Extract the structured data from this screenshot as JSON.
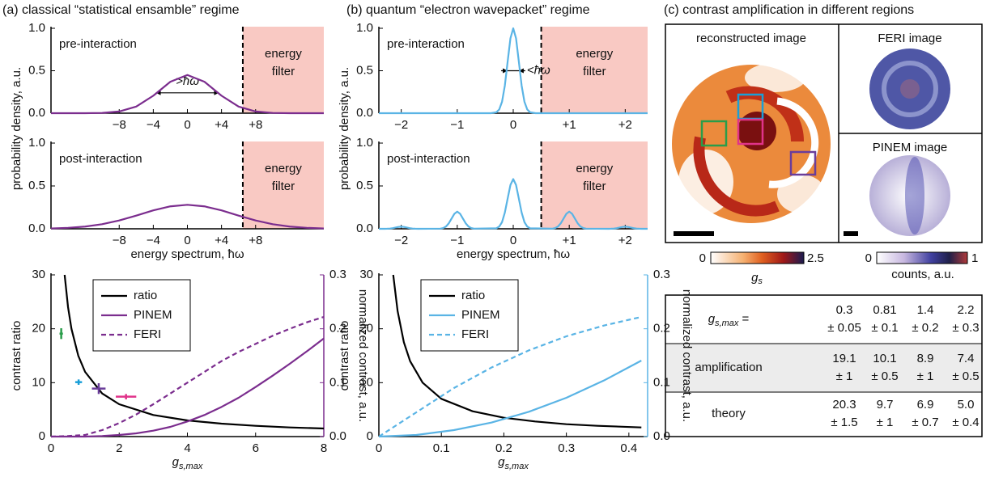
{
  "panels": [
    {
      "label": "(a) classical “statistical ensamble” regime"
    },
    {
      "label": "(b) quantum “electron wavepacket” regime"
    },
    {
      "label": "(c) contrast amplification in different regions"
    }
  ],
  "chart_data": [
    {
      "type": "line",
      "annotation": "pre-interaction",
      "ylabel": "probability density, a.u.",
      "filter_from": 6.5,
      "filter_label": [
        "energy",
        "filter"
      ],
      "width_marker": {
        "label": ">ħω",
        "from": -3.7,
        "to": 3.7,
        "y": 0.24
      },
      "xlim": [
        -16,
        16
      ],
      "xticks": [
        {
          "value": -8,
          "label": "−8"
        },
        {
          "value": -4,
          "label": "−4"
        },
        0,
        {
          "value": 4,
          "label": "+4"
        },
        {
          "value": 8,
          "label": "+8"
        }
      ],
      "ylim": [
        0,
        1
      ],
      "yticks": [
        {
          "value": 0,
          "label": "0.0"
        },
        0.5,
        {
          "value": 1,
          "label": "1.0"
        }
      ],
      "series": [
        {
          "color": "#7b2d8e",
          "x": [
            -16,
            -14,
            -12,
            -10,
            -8,
            -6,
            -4,
            -2,
            0,
            2,
            4,
            6,
            8,
            10,
            12,
            14,
            16
          ],
          "values": [
            0,
            0,
            0,
            0.003,
            0.02,
            0.078,
            0.206,
            0.37,
            0.45,
            0.37,
            0.206,
            0.078,
            0.02,
            0.003,
            0,
            0,
            0
          ]
        }
      ]
    },
    {
      "type": "line",
      "annotation": "post-interaction",
      "xlabel": "energy spectrum,  ħω",
      "filter_from": 6.5,
      "filter_label": [
        "energy",
        "filter"
      ],
      "xlim": [
        -16,
        16
      ],
      "xticks": [
        {
          "value": -8,
          "label": "−8"
        },
        {
          "value": -4,
          "label": "−4"
        },
        0,
        {
          "value": 4,
          "label": "+4"
        },
        {
          "value": 8,
          "label": "+8"
        }
      ],
      "ylim": [
        0,
        1
      ],
      "yticks": [
        {
          "value": 0,
          "label": "0.0"
        },
        0.5,
        {
          "value": 1,
          "label": "1.0"
        }
      ],
      "series": [
        {
          "color": "#7b2d8e",
          "x": [
            -16,
            -14,
            -12,
            -10,
            -8,
            -6,
            -4,
            -2,
            0,
            2,
            4,
            6,
            8,
            10,
            12,
            14,
            16
          ],
          "values": [
            0.004,
            0.011,
            0.026,
            0.054,
            0.097,
            0.154,
            0.215,
            0.262,
            0.28,
            0.262,
            0.215,
            0.154,
            0.097,
            0.054,
            0.026,
            0.011,
            0.004
          ]
        }
      ]
    },
    {
      "type": "line",
      "annotation": "pre-interaction",
      "ylabel": "probability density, a.u.",
      "filter_from": 0.5,
      "filter_label": [
        "energy",
        "filter"
      ],
      "width_marker": {
        "label": "<ħω",
        "from": -0.1,
        "to": 0.1,
        "y": 0.5
      },
      "xlim": [
        -2.4,
        2.4
      ],
      "xticks": [
        {
          "value": -2,
          "label": "−2"
        },
        {
          "value": -1,
          "label": "−1"
        },
        0,
        {
          "value": 1,
          "label": "+1"
        },
        {
          "value": 2,
          "label": "+2"
        }
      ],
      "ylim": [
        0,
        1
      ],
      "yticks": [
        {
          "value": 0,
          "label": "0.0"
        },
        0.5,
        {
          "value": 1,
          "label": "1.0"
        }
      ],
      "series": [
        {
          "color": "#5ab4e5",
          "x": [
            -2.4,
            -0.4,
            -0.3,
            -0.25,
            -0.2,
            -0.15,
            -0.1,
            -0.05,
            0,
            0.05,
            0.1,
            0.15,
            0.2,
            0.25,
            0.3,
            0.4,
            2.4
          ],
          "values": [
            0,
            0,
            0.011,
            0.044,
            0.135,
            0.325,
            0.607,
            0.882,
            1,
            0.882,
            0.607,
            0.325,
            0.135,
            0.044,
            0.011,
            0,
            0
          ]
        }
      ]
    },
    {
      "type": "line",
      "annotation": "post-interaction",
      "xlabel": "energy spectrum,  ħω",
      "filter_from": 0.5,
      "filter_label": [
        "energy",
        "filter"
      ],
      "xlim": [
        -2.4,
        2.4
      ],
      "xticks": [
        {
          "value": -2,
          "label": "−2"
        },
        {
          "value": -1,
          "label": "−1"
        },
        0,
        {
          "value": 1,
          "label": "+1"
        },
        {
          "value": 2,
          "label": "+2"
        }
      ],
      "ylim": [
        0,
        1
      ],
      "yticks": [
        {
          "value": 0,
          "label": "0.0"
        },
        0.5,
        {
          "value": 1,
          "label": "1.0"
        }
      ],
      "series": [
        {
          "color": "#5ab4e5",
          "x": [
            -2.4,
            -2.3,
            -2.25,
            -2.2,
            -2.15,
            -2.1,
            -2.05,
            -2,
            -1.95,
            -1.9,
            -1.85,
            -1.8,
            -1.75,
            -1.7,
            -1.3,
            -1.25,
            -1.2,
            -1.15,
            -1.1,
            -1.05,
            -1,
            -0.95,
            -0.9,
            -0.85,
            -0.8,
            -0.75,
            -0.7,
            -0.3,
            -0.25,
            -0.2,
            -0.15,
            -0.1,
            -0.05,
            0,
            0.05,
            0.1,
            0.15,
            0.2,
            0.25,
            0.3,
            0.7,
            0.75,
            0.8,
            0.85,
            0.9,
            0.95,
            1,
            1.05,
            1.1,
            1.15,
            1.2,
            1.25,
            1.3,
            1.7,
            1.75,
            1.8,
            1.85,
            1.9,
            1.95,
            2,
            2.05,
            2.1,
            2.15,
            2.2,
            2.25,
            2.3,
            2.4
          ],
          "values": [
            0,
            0,
            0.001,
            0.003,
            0.008,
            0.015,
            0.022,
            0.025,
            0.022,
            0.015,
            0.008,
            0.003,
            0.001,
            0,
            0.002,
            0.009,
            0.027,
            0.065,
            0.121,
            0.176,
            0.2,
            0.176,
            0.121,
            0.065,
            0.027,
            0.009,
            0.002,
            0.006,
            0.026,
            0.078,
            0.189,
            0.352,
            0.512,
            0.58,
            0.512,
            0.352,
            0.189,
            0.078,
            0.026,
            0.006,
            0.002,
            0.009,
            0.027,
            0.065,
            0.121,
            0.176,
            0.2,
            0.176,
            0.121,
            0.065,
            0.027,
            0.009,
            0.002,
            0,
            0.001,
            0.003,
            0.008,
            0.015,
            0.022,
            0.025,
            0.022,
            0.015,
            0.008,
            0.003,
            0.001,
            0,
            0
          ]
        }
      ]
    },
    {
      "type": "line",
      "ylabel": "contrast ratio",
      "xlabel": "g",
      "xlabel_sub": "s,max",
      "y2label": "normalized contrast, a.u.",
      "y2color": "#7b2d8e",
      "legend": "upper left",
      "xlim": [
        0,
        8
      ],
      "xticks": [
        0,
        2,
        4,
        6,
        8
      ],
      "ylim": [
        0,
        30
      ],
      "yticks": [
        0,
        10,
        20,
        30
      ],
      "y2lim": [
        0,
        0.3
      ],
      "y2ticks": [
        {
          "value": 0,
          "label": "0.0"
        },
        0.1,
        0.2,
        0.3
      ],
      "series": [
        {
          "name": "ratio",
          "color": "#000000",
          "x": [
            0.4,
            0.5,
            0.6,
            0.8,
            1,
            1.5,
            2,
            3,
            4,
            5,
            6,
            7,
            8
          ],
          "values": [
            30,
            24,
            20,
            15,
            12,
            8,
            6,
            4,
            3,
            2.4,
            2,
            1.7,
            1.5
          ]
        },
        {
          "name": "PINEM",
          "color": "#7b2d8e",
          "axis": "y2",
          "x": [
            0,
            0.5,
            1,
            1.5,
            2,
            2.5,
            3,
            3.5,
            4,
            4.5,
            5,
            5.5,
            6,
            6.5,
            7,
            7.5,
            8
          ],
          "values": [
            0,
            0,
            0,
            0.001,
            0.003,
            0.006,
            0.011,
            0.018,
            0.028,
            0.04,
            0.055,
            0.072,
            0.092,
            0.113,
            0.135,
            0.158,
            0.182
          ]
        },
        {
          "name": "FERI",
          "color": "#7b2d8e",
          "axis": "y2",
          "dashed": true,
          "x": [
            0,
            0.5,
            1,
            1.5,
            2,
            2.5,
            3,
            3.5,
            4,
            4.5,
            5,
            5.5,
            6,
            6.5,
            7,
            7.5,
            8
          ],
          "values": [
            0,
            0.001,
            0.003,
            0.012,
            0.025,
            0.041,
            0.06,
            0.08,
            0.1,
            0.12,
            0.14,
            0.157,
            0.172,
            0.187,
            0.2,
            0.212,
            0.222
          ]
        }
      ],
      "measurements": {
        "x": [
          0.3,
          0.81,
          1.4,
          2.2
        ],
        "xerr": [
          0.05,
          0.1,
          0.2,
          0.3
        ],
        "values": [
          19.1,
          10.1,
          8.9,
          7.4
        ],
        "yerr": [
          1,
          0.5,
          1,
          0.5
        ],
        "colors": [
          "#2a9d4a",
          "#1a9fd8",
          "#6a3d9a",
          "#e0338a"
        ]
      }
    },
    {
      "type": "line",
      "ylabel": "contrast ratio",
      "xlabel": "g",
      "xlabel_sub": "s,max",
      "y2label": "normalized contrast, a.u.",
      "y2color": "#5ab4e5",
      "legend": "upper left",
      "xlim": [
        0,
        0.43
      ],
      "xticks": [
        0,
        0.1,
        0.2,
        0.3,
        0.4
      ],
      "ylim": [
        0,
        30
      ],
      "yticks": [
        0,
        10,
        20,
        30
      ],
      "y2lim": [
        0,
        0.3
      ],
      "y2ticks": [
        {
          "value": 0,
          "label": "0.0"
        },
        0.1,
        0.2,
        0.3
      ],
      "series": [
        {
          "name": "ratio",
          "color": "#000000",
          "x": [
            0.023,
            0.03,
            0.04,
            0.05,
            0.07,
            0.1,
            0.15,
            0.2,
            0.25,
            0.3,
            0.35,
            0.42
          ],
          "values": [
            30,
            23.3,
            17.5,
            14,
            10,
            7,
            4.7,
            3.5,
            2.8,
            2.3,
            2,
            1.7
          ]
        },
        {
          "name": "PINEM",
          "color": "#5ab4e5",
          "axis": "y2",
          "x": [
            0,
            0.06,
            0.12,
            0.18,
            0.24,
            0.3,
            0.36,
            0.42
          ],
          "values": [
            0,
            0.003,
            0.012,
            0.026,
            0.046,
            0.072,
            0.104,
            0.141
          ]
        },
        {
          "name": "FERI",
          "color": "#5ab4e5",
          "axis": "y2",
          "dashed": true,
          "x": [
            0,
            0.06,
            0.12,
            0.18,
            0.24,
            0.3,
            0.36,
            0.42
          ],
          "values": [
            0,
            0.045,
            0.09,
            0.128,
            0.16,
            0.186,
            0.206,
            0.222
          ]
        }
      ]
    }
  ],
  "images": {
    "reconstructed": "reconstructed image",
    "feri": "FERI image",
    "pinem": "PINEM image"
  },
  "colorbars": [
    {
      "min": 0,
      "max": 2.5,
      "label": "g",
      "label_sub": "s"
    },
    {
      "min": 0,
      "max": 1,
      "label": "counts, a.u."
    }
  ],
  "table": {
    "column_colors": [
      "#2a9d4a",
      "#1a9fd8",
      "#6a3d9a",
      "#e0338a"
    ],
    "rows": [
      {
        "label": "g",
        "label_sub": "s,max",
        "label_suffix": " =",
        "colored": true,
        "cells": [
          [
            "0.3",
            "± 0.05"
          ],
          [
            "0.81",
            "± 0.1"
          ],
          [
            "1.4",
            "± 0.2"
          ],
          [
            "2.2",
            "± 0.3"
          ]
        ]
      },
      {
        "label": "amplification",
        "colored": true,
        "cells": [
          [
            "19.1",
            "± 1"
          ],
          [
            "10.1",
            "± 0.5"
          ],
          [
            "8.9",
            "± 1"
          ],
          [
            "7.4",
            "± 0.5"
          ]
        ]
      },
      {
        "label": "theory",
        "colored": false,
        "cells": [
          [
            "20.3",
            "± 1.5"
          ],
          [
            "9.7",
            "± 1"
          ],
          [
            "6.9",
            "± 0.7"
          ],
          [
            "5.0",
            "± 0.4"
          ]
        ]
      }
    ]
  }
}
